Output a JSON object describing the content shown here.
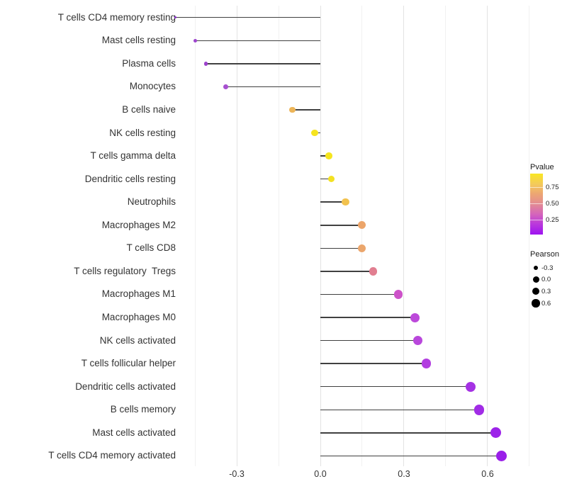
{
  "chart_data": {
    "type": "scatter",
    "variant": "lollipop",
    "title": "",
    "xlabel": "",
    "ylabel": "",
    "grid": true,
    "xlim": [
      -0.58,
      0.87
    ],
    "x_ticks": [
      {
        "label": "-0.3",
        "value": -0.3
      },
      {
        "label": "0.0",
        "value": 0.0
      },
      {
        "label": "0.3",
        "value": 0.3
      },
      {
        "label": "0.6",
        "value": 0.6
      }
    ],
    "x_minor_gridlines": [
      -0.45,
      -0.15,
      0.15,
      0.45,
      0.75
    ],
    "points": [
      {
        "category": "T cells CD4 memory resting",
        "pearson": -0.52,
        "pvalue_est": 0.1,
        "color": "#8d2ed1",
        "diameter": 3.5
      },
      {
        "category": "Mast cells resting",
        "pearson": -0.45,
        "pvalue_est": 0.15,
        "color": "#9d44cd",
        "diameter": 5
      },
      {
        "category": "Plasma cells",
        "pearson": -0.41,
        "pvalue_est": 0.15,
        "color": "#9c42cc",
        "diameter": 5.5
      },
      {
        "category": "Monocytes",
        "pearson": -0.34,
        "pvalue_est": 0.2,
        "color": "#a750d0",
        "diameter": 7
      },
      {
        "category": "B cells naive",
        "pearson": -0.1,
        "pvalue_est": 0.62,
        "color": "#edb558",
        "diameter": 8.5
      },
      {
        "category": "NK cells resting",
        "pearson": -0.02,
        "pvalue_est": 0.9,
        "color": "#f6e41f",
        "diameter": 9.5
      },
      {
        "category": "T cells gamma delta",
        "pearson": 0.03,
        "pvalue_est": 0.9,
        "color": "#f5e51e",
        "diameter": 9.5
      },
      {
        "category": "Dendritic cells resting",
        "pearson": 0.04,
        "pvalue_est": 0.88,
        "color": "#f3e122",
        "diameter": 9.5
      },
      {
        "category": "Neutrophils",
        "pearson": 0.09,
        "pvalue_est": 0.68,
        "color": "#f2c24e",
        "diameter": 10.5
      },
      {
        "category": "Macrophages M2",
        "pearson": 0.15,
        "pvalue_est": 0.58,
        "color": "#eca56a",
        "diameter": 11
      },
      {
        "category": "T cells CD8",
        "pearson": 0.15,
        "pvalue_est": 0.58,
        "color": "#eba66c",
        "diameter": 11
      },
      {
        "category": "T cells regulatory  Tregs",
        "pearson": 0.19,
        "pvalue_est": 0.45,
        "color": "#e17e90",
        "diameter": 11.5
      },
      {
        "category": "Macrophages M1",
        "pearson": 0.28,
        "pvalue_est": 0.3,
        "color": "#cd52c9",
        "diameter": 12.5
      },
      {
        "category": "Macrophages M0",
        "pearson": 0.34,
        "pvalue_est": 0.25,
        "color": "#bc49da",
        "diameter": 13
      },
      {
        "category": "NK cells activated",
        "pearson": 0.35,
        "pvalue_est": 0.24,
        "color": "#b947dc",
        "diameter": 13
      },
      {
        "category": "T cells follicular helper",
        "pearson": 0.38,
        "pvalue_est": 0.21,
        "color": "#b23ee0",
        "diameter": 13.5
      },
      {
        "category": "Dendritic cells activated",
        "pearson": 0.54,
        "pvalue_est": 0.13,
        "color": "#a532e4",
        "diameter": 14
      },
      {
        "category": "B cells memory",
        "pearson": 0.57,
        "pvalue_est": 0.11,
        "color": "#a12ce6",
        "diameter": 14.5
      },
      {
        "category": "Mast cells activated",
        "pearson": 0.63,
        "pvalue_est": 0.07,
        "color": "#9c23e9",
        "diameter": 15
      },
      {
        "category": "T cells CD4 memory activated",
        "pearson": 0.65,
        "pvalue_est": 0.06,
        "color": "#9a1fe9",
        "diameter": 15.5
      }
    ]
  },
  "legend": {
    "pvalue": {
      "title": "Pvalue",
      "ticks": [
        {
          "label": "0.75",
          "pct_from_top": 22
        },
        {
          "label": "0.50",
          "pct_from_top": 49
        },
        {
          "label": "0.25",
          "pct_from_top": 76
        }
      ],
      "gradient": [
        "#f9e721",
        "#f4cb5a",
        "#eca673",
        "#e38b93",
        "#d465bb",
        "#b937dd",
        "#9d13f0"
      ]
    },
    "pearson": {
      "title": "Pearson",
      "dot_color": "#000000",
      "entries": [
        {
          "label": "-0.3",
          "diameter": 6.5
        },
        {
          "label": "0.0",
          "diameter": 9
        },
        {
          "label": "0.3",
          "diameter": 10
        },
        {
          "label": "0.6",
          "diameter": 11.5
        }
      ]
    }
  },
  "colors": {
    "background": "#ffffff",
    "stem": "#404040",
    "grid_major": "#e3e3e3",
    "grid_minor": "#f1f1f1",
    "axis_text": "#333333"
  }
}
